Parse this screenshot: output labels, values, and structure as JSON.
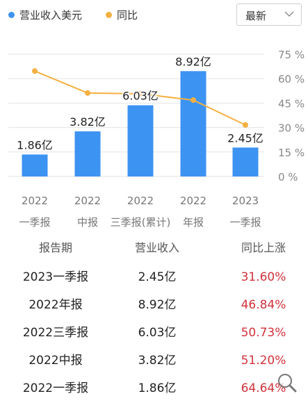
{
  "legend": {
    "revenue_label": "营业收入美元",
    "yoy_label": "同比"
  },
  "period_select": {
    "value": "最新"
  },
  "chart_data": {
    "type": "bar",
    "categories": [
      "2022 一季报",
      "2022 中报",
      "2022 三季报(累计)",
      "2022 年报",
      "2023 一季报"
    ],
    "category_lines": [
      [
        "2022",
        "一季报"
      ],
      [
        "2022",
        "中报"
      ],
      [
        "2022",
        "三季报(累计)"
      ],
      [
        "2022",
        "年报"
      ],
      [
        "2023",
        "一季报"
      ]
    ],
    "series": [
      {
        "name": "营业收入美元",
        "type": "bar",
        "values": [
          1.86,
          3.82,
          6.03,
          8.92,
          2.45
        ],
        "unit": "亿",
        "data_labels": [
          "1.86亿",
          "3.82亿",
          "6.03亿",
          "8.92亿",
          "2.45亿"
        ]
      },
      {
        "name": "同比",
        "type": "line",
        "values": [
          64.64,
          51.2,
          50.73,
          46.84,
          31.6
        ],
        "unit": "%"
      }
    ],
    "right_axis": {
      "ticks": [
        "0 %",
        "15 %",
        "30 %",
        "45 %",
        "60 %",
        "75 %"
      ],
      "range": [
        0,
        75
      ]
    },
    "left_axis_range": [
      0,
      10
    ],
    "colors": {
      "bar": "#3d93f2",
      "line": "#f5b041",
      "grid": "#e3e3e3"
    },
    "grid": true,
    "legend_position": "top-left"
  },
  "table": {
    "headers": [
      "报告期",
      "营业收入",
      "同比上涨"
    ],
    "rows": [
      {
        "period": "2023一季报",
        "revenue": "2.45亿",
        "yoy": "31.60%"
      },
      {
        "period": "2022年报",
        "revenue": "8.92亿",
        "yoy": "46.84%"
      },
      {
        "period": "2022三季报",
        "revenue": "6.03亿",
        "yoy": "50.73%"
      },
      {
        "period": "2022中报",
        "revenue": "3.82亿",
        "yoy": "51.20%"
      },
      {
        "period": "2022一季报",
        "revenue": "1.86亿",
        "yoy": "64.64%"
      }
    ]
  }
}
